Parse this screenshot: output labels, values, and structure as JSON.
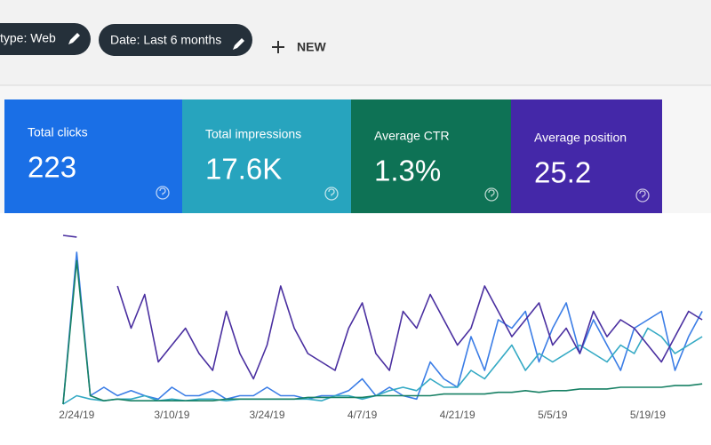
{
  "filters": [
    "type: Web",
    "Date: Last 6 months"
  ],
  "new_button": "NEW",
  "metrics": [
    {
      "label": "Total clicks",
      "value": "223",
      "color": "#1a6fe6"
    },
    {
      "label": "Total impressions",
      "value": "17.6K",
      "color": "#27a4be"
    },
    {
      "label": "Average CTR",
      "value": "1.3%",
      "color": "#0e7255"
    },
    {
      "label": "Average position",
      "value": "25.2",
      "color": "#4428a8"
    }
  ],
  "chart_data": {
    "type": "line",
    "categories": [
      null,
      "2/24/19",
      null,
      null,
      null,
      null,
      null,
      null,
      "3/10/19",
      null,
      null,
      null,
      null,
      null,
      null,
      "3/24/19",
      null,
      null,
      null,
      null,
      null,
      null,
      "4/7/19",
      null,
      null,
      null,
      null,
      null,
      null,
      "4/21/19",
      null,
      null,
      null,
      null,
      null,
      null,
      "5/5/19",
      null,
      null,
      null,
      null,
      null,
      null,
      "5/19/19",
      null,
      null,
      null,
      null
    ],
    "ylim": [
      0,
      100
    ],
    "series": [
      {
        "name": "Total clicks",
        "color": "#3b7de6",
        "values": [
          0,
          90,
          5,
          10,
          5,
          8,
          5,
          3,
          10,
          5,
          5,
          8,
          3,
          5,
          5,
          10,
          5,
          5,
          3,
          5,
          5,
          8,
          15,
          5,
          10,
          5,
          3,
          25,
          15,
          10,
          40,
          20,
          50,
          45,
          55,
          25,
          45,
          60,
          30,
          50,
          35,
          20,
          45,
          50,
          55,
          20,
          40,
          55
        ]
      },
      {
        "name": "Total impressions",
        "color": "#33a9c4",
        "values": [
          0,
          5,
          3,
          2,
          3,
          3,
          5,
          2,
          3,
          2,
          3,
          3,
          2,
          3,
          3,
          3,
          3,
          3,
          3,
          2,
          5,
          5,
          3,
          5,
          8,
          10,
          8,
          15,
          10,
          10,
          20,
          15,
          25,
          35,
          20,
          30,
          25,
          30,
          35,
          30,
          25,
          35,
          30,
          45,
          40,
          30,
          35,
          40
        ]
      },
      {
        "name": "Average CTR",
        "color": "#178064",
        "values": [
          0,
          85,
          5,
          2,
          3,
          2,
          2,
          2,
          2,
          2,
          2,
          2,
          3,
          3,
          3,
          3,
          3,
          3,
          4,
          4,
          4,
          4,
          4,
          5,
          5,
          5,
          5,
          5,
          6,
          6,
          6,
          6,
          7,
          7,
          8,
          7,
          8,
          8,
          9,
          9,
          9,
          10,
          10,
          10,
          10,
          11,
          11,
          12
        ]
      },
      {
        "name": "Average position",
        "color": "#4a2fa0",
        "values": [
          100,
          99,
          null,
          null,
          70,
          45,
          65,
          25,
          35,
          45,
          30,
          20,
          55,
          30,
          15,
          35,
          70,
          45,
          30,
          25,
          20,
          45,
          60,
          30,
          20,
          55,
          45,
          65,
          50,
          35,
          45,
          70,
          55,
          40,
          50,
          60,
          35,
          45,
          30,
          55,
          40,
          50,
          45,
          35,
          25,
          40,
          55,
          50
        ]
      }
    ]
  }
}
